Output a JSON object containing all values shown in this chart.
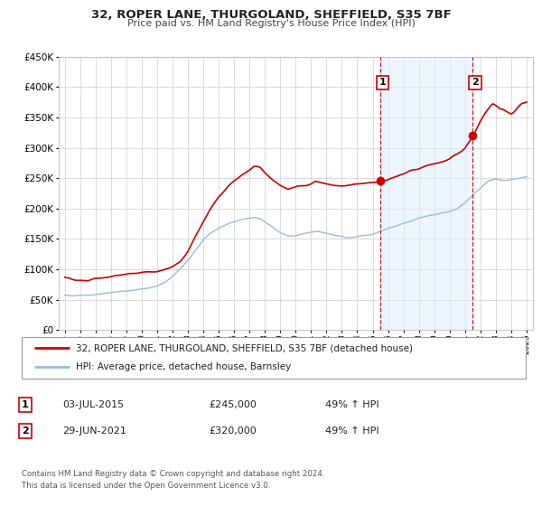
{
  "title": "32, ROPER LANE, THURGOLAND, SHEFFIELD, S35 7BF",
  "subtitle": "Price paid vs. HM Land Registry's House Price Index (HPI)",
  "ylim": [
    0,
    450000
  ],
  "xlim_start": 1994.6,
  "xlim_end": 2025.4,
  "sale1_date": 2015.5,
  "sale1_price": 245000,
  "sale2_date": 2021.5,
  "sale2_price": 320000,
  "line1_color": "#cc0000",
  "line2_color": "#99bbdd",
  "marker_color": "#cc0000",
  "vline_color": "#cc0000",
  "shade_color": "#ddeeff",
  "legend_label1": "32, ROPER LANE, THURGOLAND, SHEFFIELD, S35 7BF (detached house)",
  "legend_label2": "HPI: Average price, detached house, Barnsley",
  "footer1": "Contains HM Land Registry data © Crown copyright and database right 2024.",
  "footer2": "This data is licensed under the Open Government Licence v3.0.",
  "background_color": "#ffffff",
  "grid_color": "#cccccc",
  "chart_bg": "#ffffff"
}
